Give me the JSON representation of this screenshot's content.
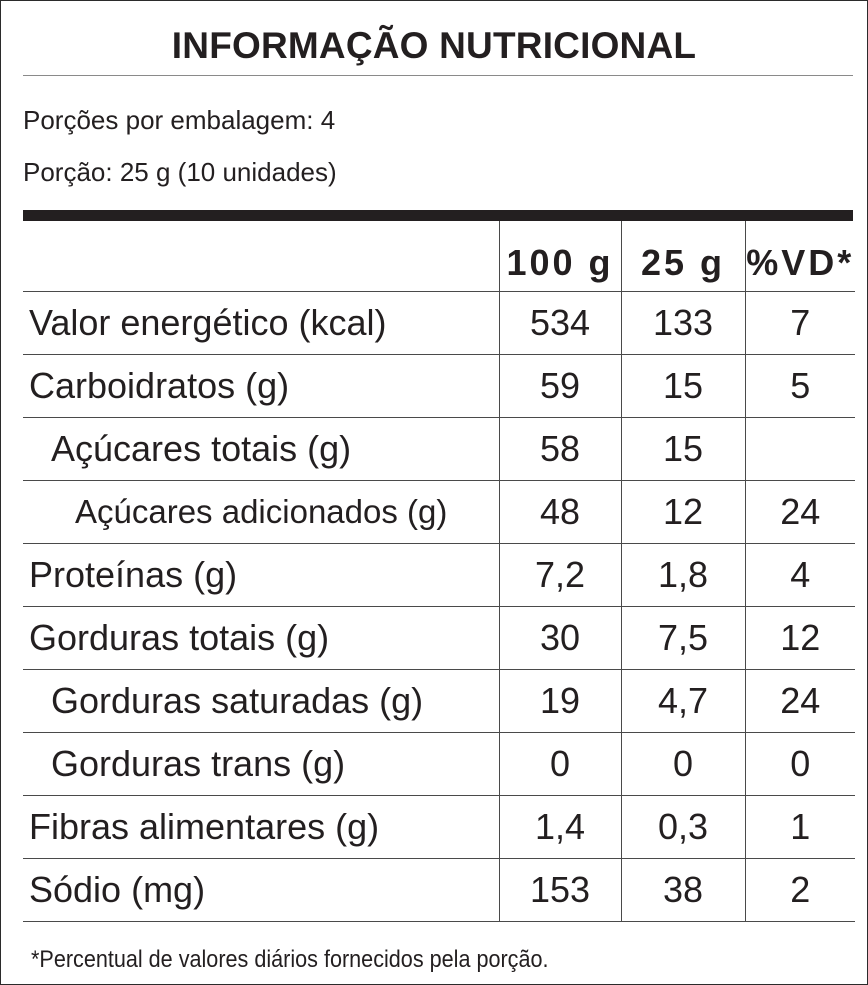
{
  "title": "INFORMAÇÃO NUTRICIONAL",
  "servings_per_package": "Porções por embalagem: 4",
  "serving_size": "Porção: 25 g (10 unidades)",
  "columns": [
    "100 g",
    "25 g",
    "%VD*"
  ],
  "rows": [
    {
      "name": "Valor energético (kcal)",
      "v100": "534",
      "v25": "133",
      "vd": "7"
    },
    {
      "name": "Carboidratos (g)",
      "v100": "59",
      "v25": "15",
      "vd": "5"
    },
    {
      "name": "Açúcares totais (g)",
      "v100": "58",
      "v25": "15",
      "vd": ""
    },
    {
      "name": "Açúcares adicionados (g)",
      "v100": "48",
      "v25": "12",
      "vd": "24"
    },
    {
      "name": "Proteínas (g)",
      "v100": "7,2",
      "v25": "1,8",
      "vd": "4"
    },
    {
      "name": "Gorduras totais (g)",
      "v100": "30",
      "v25": "7,5",
      "vd": "12"
    },
    {
      "name": "Gorduras saturadas (g)",
      "v100": "19",
      "v25": "4,7",
      "vd": "24"
    },
    {
      "name": "Gorduras trans (g)",
      "v100": "0",
      "v25": "0",
      "vd": "0"
    },
    {
      "name": "Fibras alimentares (g)",
      "v100": "1,4",
      "v25": "0,3",
      "vd": "1"
    },
    {
      "name": "Sódio (mg)",
      "v100": "153",
      "v25": "38",
      "vd": "2"
    }
  ],
  "footnote": "*Percentual de valores diários fornecidos pela porção."
}
